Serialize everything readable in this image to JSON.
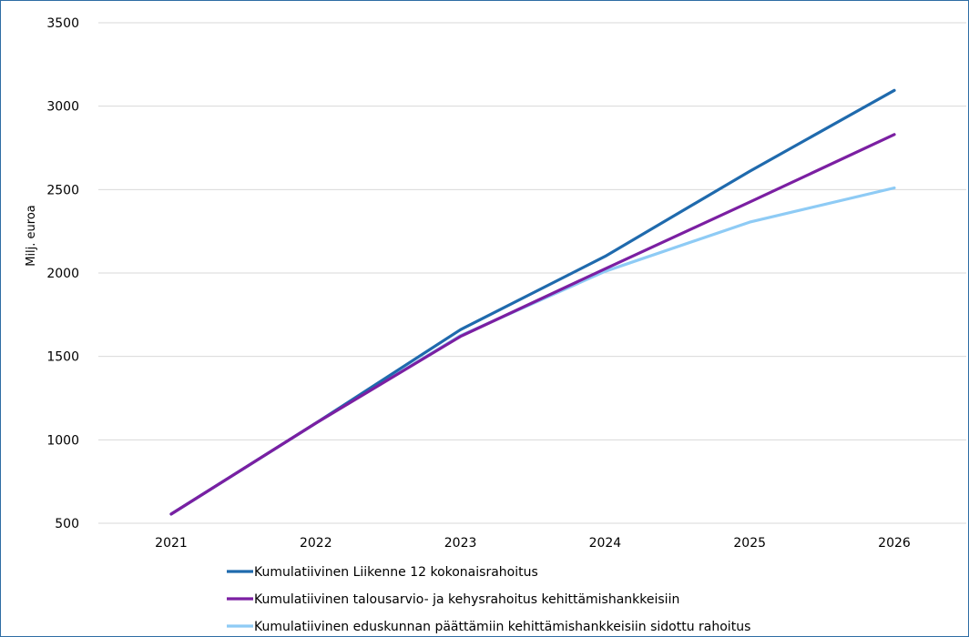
{
  "chart_data": {
    "type": "line",
    "title": "",
    "xlabel": "",
    "ylabel": "Milj. euroa",
    "categories": [
      "2021",
      "2022",
      "2023",
      "2024",
      "2025",
      "2026"
    ],
    "ylim": [
      500,
      3500
    ],
    "yticks": [
      500,
      1000,
      1500,
      2000,
      2500,
      3000,
      3500
    ],
    "grid": true,
    "legend_position": "bottom",
    "series": [
      {
        "name": "Kumulatiivinen Liikenne 12 kokonaisrahoitus",
        "color": "#1f6aad",
        "values": [
          555,
          1100,
          1660,
          2100,
          2610,
          3095
        ]
      },
      {
        "name": "Kumulatiivinen talousarvio- ja kehysrahoitus kehittämishankkeisiin",
        "color": "#7b1fa2",
        "values": [
          555,
          1100,
          1620,
          2025,
          2425,
          2830
        ]
      },
      {
        "name": "Kumulatiivinen eduskunnan päättämiin kehittämishankkeisiin sidottu rahoitus",
        "color": "#8ecbf5",
        "values": [
          555,
          1100,
          1625,
          2010,
          2305,
          2510
        ]
      }
    ]
  }
}
